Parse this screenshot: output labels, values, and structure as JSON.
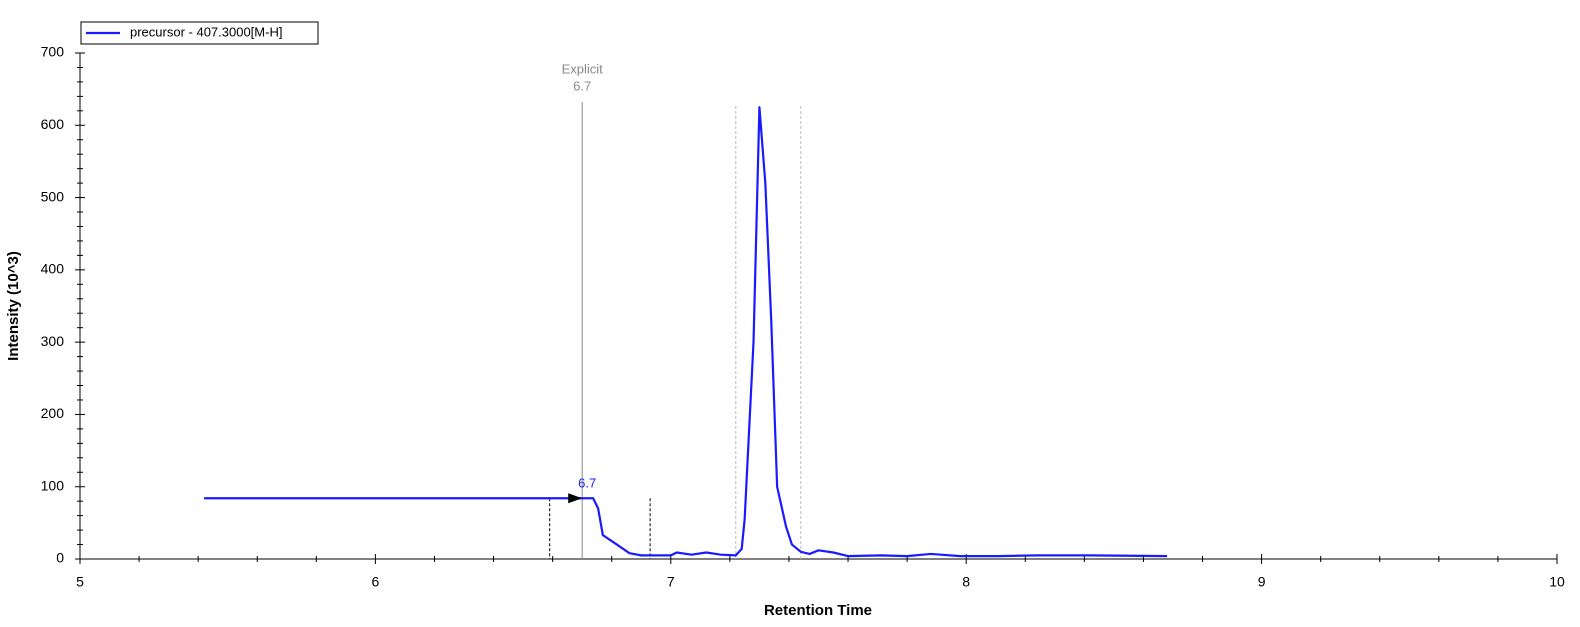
{
  "chart_data": {
    "type": "line",
    "x_label": "Retention Time",
    "y_label": "Intensity (10^3)",
    "x": [
      5.42,
      6.72,
      6.737,
      6.754,
      6.77,
      6.81,
      6.86,
      6.9,
      7.0,
      7.02,
      7.07,
      7.12,
      7.17,
      7.22,
      7.24,
      7.25,
      7.28,
      7.3,
      7.32,
      7.34,
      7.36,
      7.39,
      7.41,
      7.44,
      7.47,
      7.5,
      7.55,
      7.6,
      7.71,
      7.8,
      7.88,
      7.98,
      8.11,
      8.24,
      8.42,
      8.68
    ],
    "series": [
      {
        "name": "precursor - 407.3000[M-H]",
        "color": "#1a1aff",
        "values": [
          84,
          84,
          84,
          70,
          33,
          22,
          8,
          5,
          5,
          9,
          6,
          9,
          6,
          5,
          14,
          55,
          300,
          625,
          520,
          330,
          100,
          45,
          20,
          10,
          7,
          12,
          9,
          4,
          5,
          4,
          7,
          4,
          4,
          5,
          5,
          4
        ]
      }
    ],
    "xlim": [
      5,
      10
    ],
    "ylim": [
      0,
      700
    ],
    "xticks": [
      5,
      6,
      7,
      8,
      9,
      10
    ],
    "yticks": [
      0,
      100,
      200,
      300,
      400,
      500,
      600,
      700
    ],
    "explicit_line": {
      "x": 6.7,
      "label": "Explicit",
      "value_label": "6.7"
    },
    "peak_label": {
      "x": 6.7,
      "y": 84,
      "label": "6.7"
    },
    "integration_bounds": [
      6.59,
      6.93
    ],
    "peak_bounds": [
      7.22,
      7.44
    ],
    "legend": "upper left"
  }
}
